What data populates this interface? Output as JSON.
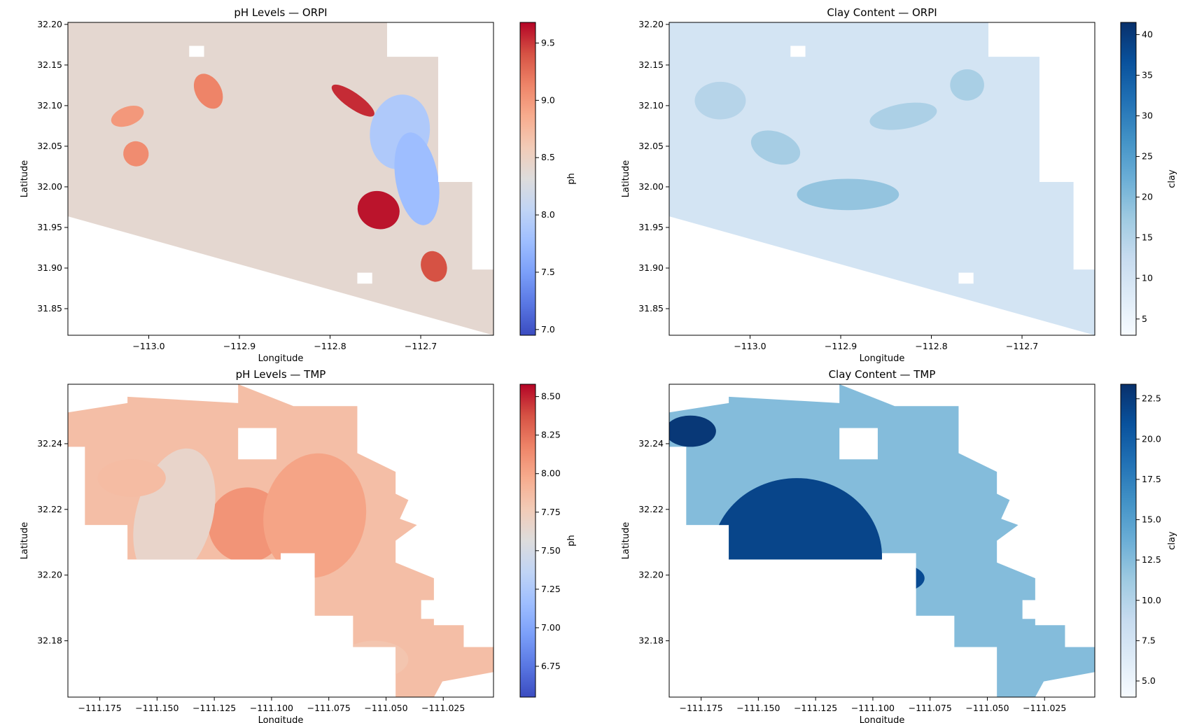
{
  "colors": {
    "coolwarm": [
      "#3b4cc0",
      "#5977e3",
      "#7b9ff9",
      "#9ebeff",
      "#c0d4f5",
      "#dddcdc",
      "#f2cbb7",
      "#f7ac8e",
      "#ee8468",
      "#d65244",
      "#b40426"
    ],
    "blues": [
      "#f7fbff",
      "#deebf7",
      "#c6dbef",
      "#9ecae1",
      "#6baed6",
      "#4292c6",
      "#2171b5",
      "#08519c",
      "#08306b"
    ]
  },
  "chart_data": [
    {
      "type": "heatmap",
      "title": "pH Levels — ORPI",
      "xlabel": "Longitude",
      "ylabel": "Latitude",
      "xlim": [
        -113.085,
        -112.615
      ],
      "ylim": [
        31.815,
        32.2
      ],
      "xticks": [
        "−113.0",
        "−112.9",
        "−112.8",
        "−112.7"
      ],
      "yticks": [
        "31.85",
        "31.90",
        "31.95",
        "32.00",
        "32.05",
        "32.10",
        "32.15",
        "32.20"
      ],
      "colorbar": {
        "label": "ph",
        "colormap": "coolwarm",
        "range": [
          6.95,
          9.68
        ],
        "ticks": [
          "7.0",
          "7.5",
          "8.0",
          "8.5",
          "9.0",
          "9.5"
        ]
      },
      "dominant_value": 8.4
    },
    {
      "type": "heatmap",
      "title": "Clay Content — ORPI",
      "xlabel": "Longitude",
      "ylabel": "Latitude",
      "xlim": [
        -113.085,
        -112.615
      ],
      "ylim": [
        31.815,
        32.2
      ],
      "xticks": [
        "−113.0",
        "−112.9",
        "−112.8",
        "−112.7"
      ],
      "yticks": [
        "31.85",
        "31.90",
        "31.95",
        "32.00",
        "32.05",
        "32.10",
        "32.15",
        "32.20"
      ],
      "colorbar": {
        "label": "clay",
        "colormap": "Blues",
        "range": [
          3,
          41.5
        ],
        "ticks": [
          "5",
          "10",
          "15",
          "20",
          "25",
          "30",
          "35",
          "40"
        ]
      },
      "dominant_value": 10
    },
    {
      "type": "heatmap",
      "title": "pH Levels — TMP",
      "xlabel": "Longitude",
      "ylabel": "Latitude",
      "xlim": [
        -111.19,
        -111.005
      ],
      "ylim": [
        32.163,
        32.258
      ],
      "xticks": [
        "−111.175",
        "−111.150",
        "−111.125",
        "−111.100",
        "−111.075",
        "−111.050",
        "−111.025"
      ],
      "yticks": [
        "32.18",
        "32.20",
        "32.22",
        "32.24"
      ],
      "colorbar": {
        "label": "ph",
        "colormap": "coolwarm",
        "range": [
          6.55,
          8.58
        ],
        "ticks": [
          "6.75",
          "7.00",
          "7.25",
          "7.50",
          "7.75",
          "8.00",
          "8.25",
          "8.50"
        ]
      },
      "dominant_value": 7.85
    },
    {
      "type": "heatmap",
      "title": "Clay Content — TMP",
      "xlabel": "Longitude",
      "ylabel": "Latitude",
      "xlim": [
        -111.19,
        -111.005
      ],
      "ylim": [
        32.163,
        32.258
      ],
      "xticks": [
        "−111.175",
        "−111.150",
        "−111.125",
        "−111.100",
        "−111.075",
        "−111.050",
        "−111.025"
      ],
      "yticks": [
        "32.18",
        "32.20",
        "32.22",
        "32.24"
      ],
      "colorbar": {
        "label": "clay",
        "colormap": "Blues",
        "range": [
          4,
          23.4
        ],
        "ticks": [
          "5.0",
          "7.5",
          "10.0",
          "12.5",
          "15.0",
          "17.5",
          "20.0",
          "22.5"
        ]
      },
      "dominant_value": 12.5
    }
  ]
}
